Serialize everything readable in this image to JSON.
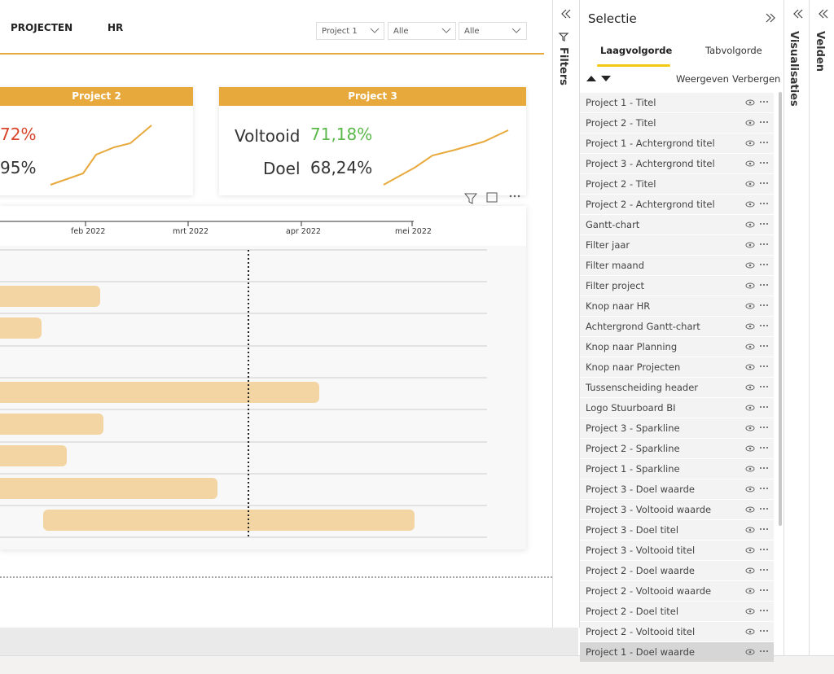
{
  "header": {
    "nav": [
      "PROJECTEN",
      "HR"
    ],
    "dropdowns": [
      "Project 1",
      "Alle",
      "Alle"
    ]
  },
  "cards": [
    {
      "title": "Project 2",
      "voltooid_value": "72%",
      "doel_value": "95%"
    },
    {
      "title": "Project 3",
      "voltooid_label": "Voltooid",
      "voltooid_value": "71,18%",
      "doel_label": "Doel",
      "doel_value": "68,24%"
    }
  ],
  "gantt": {
    "axis_labels": [
      "feb 2022",
      "mrt 2022",
      "apr 2022",
      "mei 2022"
    ]
  },
  "panes": {
    "filters": "Filters",
    "visualisaties": "Visualisaties",
    "velden": "Velden"
  },
  "selection": {
    "title": "Selectie",
    "tabs": [
      "Laagvolgorde",
      "Tabvolgorde"
    ],
    "buttons": [
      "Weergeven",
      "Verbergen"
    ],
    "items": [
      "Project 1 - Titel",
      "Project 2 - Titel",
      "Project 1 - Achtergrond titel",
      "Project 3 - Achtergrond titel",
      "Project 2 - Titel",
      "Project 2 - Achtergrond titel",
      "Gantt-chart",
      "Filter jaar",
      "Filter maand",
      "Filter project",
      "Knop naar HR",
      "Achtergrond Gantt-chart",
      "Knop naar Planning",
      "Knop naar Projecten",
      "Tussenscheiding header",
      "Logo Stuurboard BI",
      "Project 3 - Sparkline",
      "Project 2 - Sparkline",
      "Project 1 - Sparkline",
      "Project 3 - Doel waarde",
      "Project 3 - Voltooid waarde",
      "Project 3 - Doel titel",
      "Project 3 - Voltooid titel",
      "Project 2 - Doel waarde",
      "Project 2 - Voltooid waarde",
      "Project 2 - Doel titel",
      "Project 2 - Voltooid titel",
      "Project 1 - Doel waarde"
    ]
  }
}
